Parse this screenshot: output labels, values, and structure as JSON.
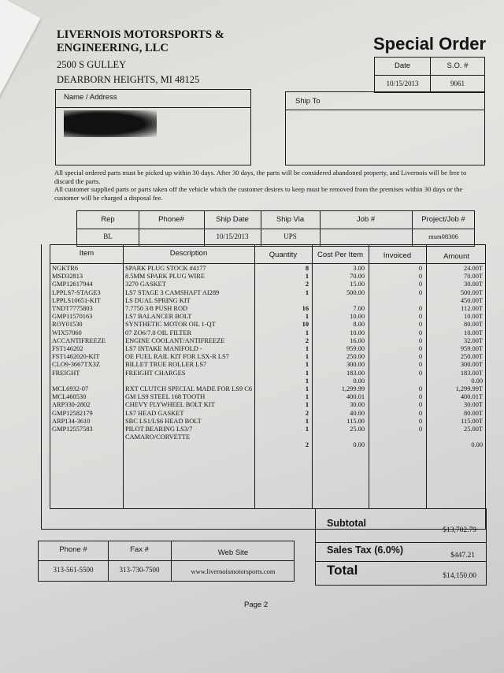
{
  "company": {
    "name_line1": "LIVERNOIS MOTORSPORTS &",
    "name_line2": "ENGINEERING, LLC",
    "street": "2500 S GULLEY",
    "city": "DEARBORN HEIGHTS, MI 48125"
  },
  "doc_title": "Special Order",
  "order_info": {
    "date_label": "Date",
    "so_label": "S.O. #",
    "date": "10/15/2013",
    "so_number": "9061"
  },
  "name_address": {
    "label": "Name / Address"
  },
  "ship_to": {
    "label": "Ship To"
  },
  "notices": [
    "All special ordered parts must be picked up within 30 days.  After 30 days, the parts will be considered abandoned property, and Livernois will be free to discard the parts.",
    "All customer supplied parts or parts taken off the vehicle which the customer desires to keep must be removed from the premises within 30 days or the customer will be charged a disposal fee."
  ],
  "shipping": {
    "headers": [
      "Rep",
      "Phone#",
      "Ship Date",
      "Ship Via",
      "Job #",
      "Project/Job #"
    ],
    "values": [
      "BL",
      "",
      "10/15/2013",
      "UPS",
      "",
      "msm08306"
    ]
  },
  "items": {
    "headers": [
      "Item",
      "Description",
      "Quantity",
      "Cost Per Item",
      "Invoiced",
      "Amount"
    ],
    "rows": [
      {
        "item": "NGKTR6",
        "desc": "SPARK PLUG  STOCK #4177",
        "qty": "8",
        "cost": "3.00",
        "inv": "0",
        "amt": "24.00T"
      },
      {
        "item": "MSD32813",
        "desc": "8.5MM SPARK PLUG WIRE",
        "qty": "1",
        "cost": "70.00",
        "inv": "0",
        "amt": "70.00T"
      },
      {
        "item": "GMP12617944",
        "desc": "3270 GASKET",
        "qty": "2",
        "cost": "15.00",
        "inv": "0",
        "amt": "30.00T"
      },
      {
        "item": "LPPLS7-STAGE3",
        "desc": "LS7 STAGE 3 CAMSHAFT AI289",
        "qty": "1",
        "cost": "500.00",
        "inv": "0",
        "amt": "500.00T"
      },
      {
        "item": "LPPLS10651-KIT",
        "desc": "LS DUAL SPRING KIT",
        "qty": "",
        "cost": "",
        "inv": "",
        "amt": "450.00T"
      },
      {
        "item": "TNDT7775803",
        "desc": "7.7750 3/8 PUSH ROD",
        "qty": "16",
        "cost": "7.00",
        "inv": "0",
        "amt": "112.00T"
      },
      {
        "item": "GMP11570163",
        "desc": "LS7 BALANCER BOLT",
        "qty": "1",
        "cost": "10.00",
        "inv": "0",
        "amt": "10.00T"
      },
      {
        "item": "ROY01530",
        "desc": "SYNTHETIC MOTOR OIL 1-QT",
        "qty": "10",
        "cost": "8.00",
        "inv": "0",
        "amt": "80.00T"
      },
      {
        "item": "WIX57060",
        "desc": "07 ZO6/7.0 OIL FILTER",
        "qty": "1",
        "cost": "10.00",
        "inv": "0",
        "amt": "10.00T"
      },
      {
        "item": "ACCANTIFREEZE",
        "desc": "ENGINE COOLANT/ANTIFREEZE",
        "qty": "2",
        "cost": "16.00",
        "inv": "0",
        "amt": "32.00T"
      },
      {
        "item": "FST146202",
        "desc": "LS7 INTAKE MANIFOLD -",
        "qty": "1",
        "cost": "959.00",
        "inv": "0",
        "amt": "959.00T"
      },
      {
        "item": "FST1462020-KIT",
        "desc": "OE FUEL RAIL KIT FOR LSX-R LS7",
        "qty": "1",
        "cost": "250.00",
        "inv": "0",
        "amt": "250.00T"
      },
      {
        "item": "CLO9-3667TX3Z",
        "desc": "BILLET TRUE ROLLER LS7",
        "qty": "1",
        "cost": "300.00",
        "inv": "0",
        "amt": "300.00T"
      },
      {
        "item": "FREIGHT",
        "desc": "FREIGHT CHARGES",
        "qty": "1",
        "cost": "183.00",
        "inv": "0",
        "amt": "183.00T"
      },
      {
        "item": "",
        "desc": "",
        "qty": "1",
        "cost": "0.00",
        "inv": "",
        "amt": "0.00"
      },
      {
        "item": "MCL6932-07",
        "desc": "RXT CLUTCH SPECIAL MADE FOR LS9 C6",
        "qty": "1",
        "cost": "1,299.99",
        "inv": "0",
        "amt": "1,299.99T"
      },
      {
        "item": "MCL460530",
        "desc": "GM LS9 STEEL 168 TOOTH",
        "qty": "1",
        "cost": "400.01",
        "inv": "0",
        "amt": "400.01T"
      },
      {
        "item": "ARP330-2802",
        "desc": "CHEVY FLYWHEEL BOLT KIT",
        "qty": "1",
        "cost": "30.00",
        "inv": "0",
        "amt": "30.00T"
      },
      {
        "item": "GMP12582179",
        "desc": "LS7 HEAD GASKET",
        "qty": "2",
        "cost": "40.00",
        "inv": "0",
        "amt": "80.00T"
      },
      {
        "item": "ARP134-3610",
        "desc": "SBC LS1/LS6 HEAD BOLT",
        "qty": "1",
        "cost": "115.00",
        "inv": "0",
        "amt": "115.00T"
      },
      {
        "item": "GMP12557583",
        "desc": "PILOT BEARING LS3/7",
        "qty": "1",
        "cost": "25.00",
        "inv": "0",
        "amt": "25.00T"
      },
      {
        "item": "",
        "desc": "CAMARO/CORVETTE",
        "qty": "",
        "cost": "",
        "inv": "",
        "amt": ""
      },
      {
        "item": "",
        "desc": "",
        "qty": "2",
        "cost": "0.00",
        "inv": "",
        "amt": "0.00"
      }
    ]
  },
  "totals": {
    "subtotal_label": "Subtotal",
    "subtotal": "$13,702.79",
    "tax_label": "Sales Tax  (6.0%)",
    "tax": "$447.21",
    "total_label": "Total",
    "total": "$14,150.00"
  },
  "contact": {
    "headers": [
      "Phone #",
      "Fax #",
      "Web Site"
    ],
    "values": [
      "313-561-5500",
      "313-730-7500",
      "www.livernoismotorsports.com"
    ]
  },
  "page_label": "Page 2"
}
